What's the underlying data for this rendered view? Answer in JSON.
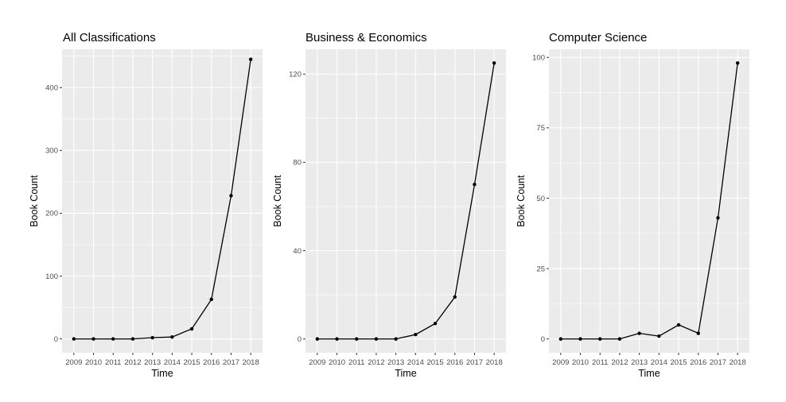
{
  "chart_data": [
    {
      "type": "line",
      "title": "All Classifications",
      "xlabel": "Time",
      "ylabel": "Book Count",
      "x": [
        2009,
        2010,
        2011,
        2012,
        2013,
        2014,
        2015,
        2016,
        2017,
        2018
      ],
      "series": [
        {
          "values": [
            0,
            0,
            0,
            0,
            2,
            3,
            16,
            63,
            228,
            445
          ]
        }
      ],
      "yticks": [
        0,
        100,
        200,
        300,
        400
      ],
      "ylim": [
        -22,
        461
      ],
      "grid": true,
      "colors": {
        "panel": "#ebebeb",
        "grid": "#ffffff",
        "line": "#000000"
      }
    },
    {
      "type": "line",
      "title": "Business & Economics",
      "xlabel": "Time",
      "ylabel": "Book Count",
      "x": [
        2009,
        2010,
        2011,
        2012,
        2013,
        2014,
        2015,
        2016,
        2017,
        2018
      ],
      "series": [
        {
          "values": [
            0,
            0,
            0,
            0,
            0,
            2,
            7,
            19,
            70,
            125
          ]
        }
      ],
      "yticks": [
        0,
        40,
        80,
        120
      ],
      "ylim": [
        -6.25,
        131.25
      ],
      "grid": true,
      "colors": {
        "panel": "#ebebeb",
        "grid": "#ffffff",
        "line": "#000000"
      }
    },
    {
      "type": "line",
      "title": "Computer Science",
      "xlabel": "Time",
      "ylabel": "Book Count",
      "x": [
        2009,
        2010,
        2011,
        2012,
        2013,
        2014,
        2015,
        2016,
        2017,
        2018
      ],
      "series": [
        {
          "values": [
            0,
            0,
            0,
            0,
            2,
            1,
            5,
            2,
            43,
            98
          ]
        }
      ],
      "yticks": [
        0,
        25,
        50,
        75,
        100
      ],
      "ylim": [
        -4.9,
        102.9
      ],
      "grid": true,
      "colors": {
        "panel": "#ebebeb",
        "grid": "#ffffff",
        "line": "#000000"
      }
    }
  ]
}
